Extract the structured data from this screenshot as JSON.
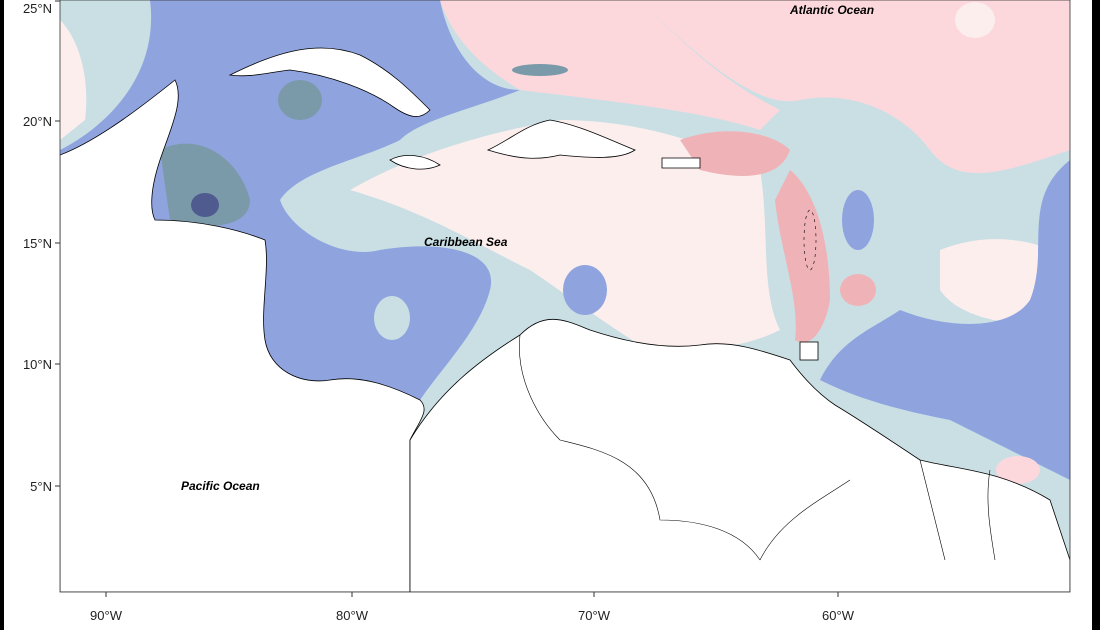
{
  "map": {
    "labels": {
      "atlantic": "Atlantic Ocean",
      "caribbean": "Caribbean Sea",
      "pacific": "Pacific Ocean"
    },
    "lat_ticks": [
      "25°N",
      "20°N",
      "15°N",
      "10°N",
      "5°N"
    ],
    "lon_ticks": [
      "90°W",
      "80°W",
      "70°W",
      "60°W"
    ],
    "palette": {
      "darkest": "#4f5a8f",
      "dark": "#7a9aaa",
      "blue": "#8fa3df",
      "light_blue": "#c9dfe4",
      "pale_pink": "#fdeeee",
      "pink": "#fcd8dd",
      "deep_pink": "#efb3b7",
      "land": "#ffffff"
    }
  }
}
